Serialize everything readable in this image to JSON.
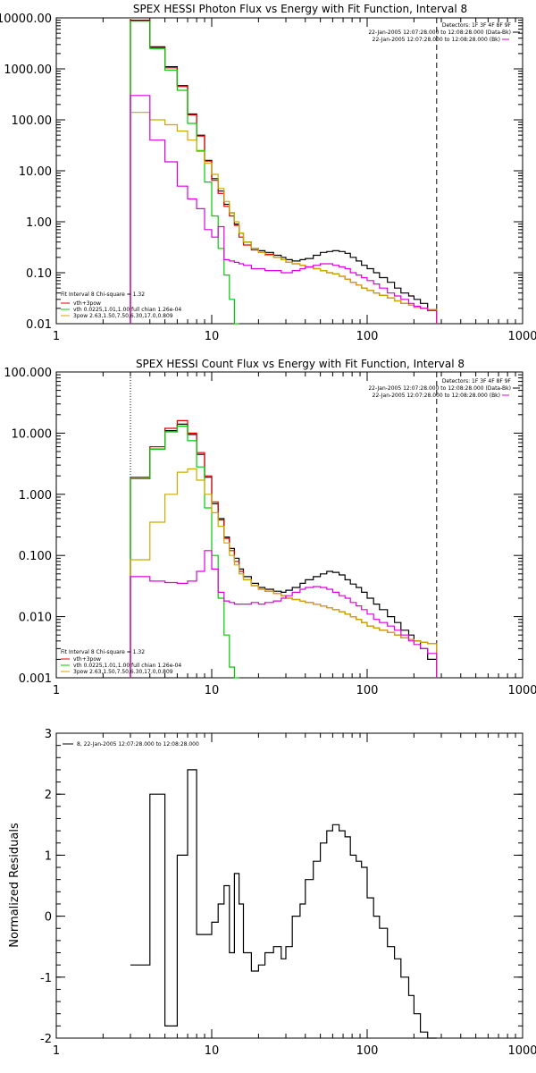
{
  "colors": {
    "total": "#000000",
    "fit_total": "#e00000",
    "vth": "#00cc00",
    "bpow": "#ccaa00",
    "bkg": "#dd00dd",
    "residual": "#000000"
  },
  "chart_data": [
    {
      "type": "line",
      "title": "SPEX HESSI Photon Flux vs Energy with Fit Function, Interval 8",
      "xscale": "log",
      "yscale": "log",
      "xlim": [
        1,
        1000
      ],
      "ylim": [
        0.01,
        10000
      ],
      "xticks": [
        1,
        10,
        100,
        1000
      ],
      "xtick_labels": [
        "1",
        "10",
        "100",
        "1000"
      ],
      "yticks": [
        0.01,
        0.1,
        1,
        10,
        100,
        1000,
        10000
      ],
      "ytick_labels": [
        "0.01",
        "0.10",
        "1.00",
        "10.00",
        "100.00",
        "1000.00",
        "10000.00"
      ],
      "vlines": [
        {
          "x": 3,
          "style": "dotted",
          "color": "#ffa500"
        },
        {
          "x": 280,
          "style": "dashed",
          "color": "#000000"
        }
      ],
      "legend_right": [
        "Detectors: 1F 3F 4F 8F 9F",
        "22-Jan-2005 12:07:28.000 to 12:08:28.000 (Data-Bk)",
        "22-Jan-2005 12:07:28.000 to 12:08:28.000 (Bk)"
      ],
      "legend_left": [
        "Fit Interval 8    Chi-square = 1.32",
        "vth+3pow",
        "vth 0.0225,1.01,1.00  full chian 1.26e-04",
        "3pow 2.63,1.50,7.50,6.30,17.0,0.809"
      ],
      "series": [
        {
          "name": "Data-Bk",
          "color": "#000000",
          "edges": [
            3,
            4,
            5,
            6,
            7,
            8,
            9,
            10,
            11,
            12,
            13,
            14,
            15,
            16,
            18,
            20,
            22,
            25,
            28,
            30,
            33,
            37,
            40,
            45,
            50,
            55,
            60,
            66,
            72,
            78,
            85,
            92,
            100,
            110,
            120,
            135,
            150,
            165,
            185,
            200,
            220,
            245,
            280
          ],
          "values": [
            9000,
            2700,
            1100,
            470,
            130,
            50,
            16,
            7,
            4.0,
            2.2,
            1.5,
            0.9,
            0.6,
            0.4,
            0.3,
            0.27,
            0.25,
            0.22,
            0.2,
            0.18,
            0.17,
            0.18,
            0.19,
            0.22,
            0.25,
            0.26,
            0.27,
            0.26,
            0.24,
            0.2,
            0.17,
            0.14,
            0.12,
            0.1,
            0.08,
            0.065,
            0.05,
            0.04,
            0.035,
            0.03,
            0.025,
            0.018
          ]
        },
        {
          "name": "vth+3pow",
          "color": "#e00000",
          "edges": [
            3,
            4,
            5,
            6,
            7,
            8,
            9,
            10,
            11,
            12,
            13,
            14,
            15,
            16,
            18,
            20,
            22,
            25,
            28,
            30,
            33,
            37,
            40,
            45,
            50,
            55,
            60,
            66,
            72,
            78,
            85,
            92,
            100,
            110,
            120,
            135,
            150,
            165,
            185,
            200,
            220,
            245,
            280
          ],
          "values": [
            8800,
            2600,
            1050,
            450,
            125,
            48,
            15.5,
            6.5,
            3.6,
            2.0,
            1.3,
            0.85,
            0.5,
            0.35,
            0.28,
            0.25,
            0.23,
            0.2,
            0.18,
            0.16,
            0.15,
            0.14,
            0.13,
            0.12,
            0.11,
            0.1,
            0.095,
            0.085,
            0.075,
            0.065,
            0.057,
            0.05,
            0.045,
            0.04,
            0.036,
            0.032,
            0.028,
            0.025,
            0.023,
            0.021,
            0.02,
            0.019
          ]
        },
        {
          "name": "vth",
          "color": "#00cc00",
          "edges": [
            3,
            4,
            5,
            6,
            7,
            8,
            9,
            10,
            11,
            12,
            13,
            14,
            15
          ],
          "values": [
            8600,
            2500,
            950,
            380,
            85,
            25,
            6.0,
            1.3,
            0.3,
            0.09,
            0.03,
            0.008
          ]
        },
        {
          "name": "3pow",
          "color": "#ccaa00",
          "edges": [
            3,
            4,
            5,
            6,
            7,
            8,
            9,
            10,
            11,
            12,
            13,
            14,
            15,
            16,
            18,
            20,
            22,
            25,
            28,
            30,
            33,
            37,
            40,
            45,
            50,
            55,
            60,
            66,
            72,
            78,
            85,
            92,
            100,
            110,
            120,
            135,
            150,
            165,
            185,
            200,
            220,
            245,
            280
          ],
          "values": [
            140,
            100,
            80,
            60,
            40,
            24,
            14,
            8.5,
            4.5,
            2.5,
            1.5,
            1.0,
            0.6,
            0.4,
            0.3,
            0.25,
            0.22,
            0.2,
            0.18,
            0.16,
            0.15,
            0.14,
            0.13,
            0.12,
            0.11,
            0.1,
            0.095,
            0.085,
            0.075,
            0.065,
            0.057,
            0.05,
            0.045,
            0.04,
            0.036,
            0.032,
            0.028,
            0.025,
            0.023,
            0.021,
            0.02,
            0.019
          ]
        },
        {
          "name": "Bk",
          "color": "#dd00dd",
          "edges": [
            3,
            4,
            5,
            6,
            7,
            8,
            9,
            10,
            11,
            12,
            13,
            14,
            15,
            16,
            18,
            20,
            22,
            25,
            28,
            30,
            33,
            37,
            40,
            45,
            50,
            55,
            60,
            66,
            72,
            78,
            85,
            92,
            100,
            110,
            120,
            135,
            150,
            165,
            185,
            200,
            220,
            245,
            280
          ],
          "values": [
            300,
            40,
            15,
            5,
            2.8,
            1.8,
            0.7,
            0.5,
            0.8,
            0.18,
            0.17,
            0.16,
            0.15,
            0.14,
            0.12,
            0.12,
            0.11,
            0.11,
            0.1,
            0.1,
            0.11,
            0.12,
            0.13,
            0.14,
            0.15,
            0.15,
            0.14,
            0.13,
            0.12,
            0.1,
            0.09,
            0.08,
            0.07,
            0.06,
            0.05,
            0.04,
            0.035,
            0.03,
            0.025,
            0.022,
            0.02,
            0.018
          ]
        }
      ]
    },
    {
      "type": "line",
      "title": "SPEX HESSI Count Flux vs Energy with Fit Function, Interval 8",
      "xscale": "log",
      "yscale": "log",
      "xlim": [
        1,
        1000
      ],
      "ylim": [
        0.001,
        100
      ],
      "xticks": [
        1,
        10,
        100,
        1000
      ],
      "xtick_labels": [
        "1",
        "10",
        "100",
        "1000"
      ],
      "yticks": [
        0.001,
        0.01,
        0.1,
        1,
        10,
        100
      ],
      "ytick_labels": [
        "0.001",
        "0.010",
        "0.100",
        "1.000",
        "10.000",
        "100.000"
      ],
      "vlines": [
        {
          "x": 3,
          "style": "dotted",
          "color": "#000000"
        },
        {
          "x": 280,
          "style": "dashed",
          "color": "#000000"
        }
      ],
      "legend_right": [
        "Detectors: 1F 3F 4F 8F 9F",
        "22-Jan-2005 12:07:28.000 to 12:08:28.000 (Data-Bk)",
        "22-Jan-2005 12:07:28.000 to 12:08:28.000 (Bk)"
      ],
      "legend_left": [
        "Fit Interval 8    Chi-square = 1.32",
        "vth+3pow",
        "vth 0.0225,1.01,1.00  full chian 1.26e-04",
        "3pow 2.63,1.50,7.50,6.30,17.0,0.809"
      ],
      "series": [
        {
          "name": "Data-Bk",
          "color": "#000000",
          "edges": [
            3,
            4,
            5,
            6,
            7,
            8,
            9,
            10,
            11,
            12,
            13,
            14,
            15,
            16,
            18,
            20,
            22,
            25,
            28,
            30,
            33,
            37,
            40,
            45,
            50,
            55,
            60,
            66,
            72,
            78,
            85,
            92,
            100,
            110,
            120,
            135,
            150,
            165,
            185,
            200,
            220,
            245,
            280
          ],
          "values": [
            1.8,
            5.5,
            11,
            14,
            9.5,
            4.5,
            1.9,
            0.7,
            0.4,
            0.2,
            0.13,
            0.09,
            0.06,
            0.045,
            0.035,
            0.03,
            0.028,
            0.026,
            0.025,
            0.027,
            0.03,
            0.035,
            0.04,
            0.045,
            0.05,
            0.055,
            0.053,
            0.048,
            0.04,
            0.034,
            0.03,
            0.025,
            0.02,
            0.016,
            0.013,
            0.01,
            0.008,
            0.006,
            0.005,
            0.004,
            0.003,
            0.002
          ]
        },
        {
          "name": "vth+3pow",
          "color": "#e00000",
          "edges": [
            3,
            4,
            5,
            6,
            7,
            8,
            9,
            10,
            11,
            12,
            13,
            14,
            15,
            16,
            18,
            20,
            22,
            25,
            28,
            30,
            33,
            37,
            40,
            45,
            50,
            55,
            60,
            66,
            72,
            78,
            85,
            92,
            100,
            110,
            120,
            135,
            150,
            165,
            185,
            200,
            220,
            245,
            280
          ],
          "values": [
            1.9,
            6,
            12,
            16,
            10,
            4.8,
            2.0,
            0.75,
            0.38,
            0.19,
            0.12,
            0.08,
            0.055,
            0.04,
            0.032,
            0.028,
            0.026,
            0.024,
            0.022,
            0.02,
            0.019,
            0.018,
            0.017,
            0.016,
            0.015,
            0.014,
            0.013,
            0.012,
            0.011,
            0.01,
            0.009,
            0.008,
            0.007,
            0.0065,
            0.006,
            0.0055,
            0.005,
            0.0045,
            0.0042,
            0.004,
            0.0038,
            0.0036
          ]
        },
        {
          "name": "vth",
          "color": "#00cc00",
          "edges": [
            3,
            4,
            5,
            6,
            7,
            8,
            9,
            10,
            11,
            12,
            13,
            14,
            15
          ],
          "values": [
            1.8,
            5.5,
            10.5,
            13,
            7.5,
            2.8,
            0.6,
            0.1,
            0.02,
            0.005,
            0.0015,
            0.0005
          ]
        },
        {
          "name": "3pow",
          "color": "#ccaa00",
          "edges": [
            3,
            4,
            5,
            6,
            7,
            8,
            9,
            10,
            11,
            12,
            13,
            14,
            15,
            16,
            18,
            20,
            22,
            25,
            28,
            30,
            33,
            37,
            40,
            45,
            50,
            55,
            60,
            66,
            72,
            78,
            85,
            92,
            100,
            110,
            120,
            135,
            150,
            165,
            185,
            200,
            220,
            245,
            280
          ],
          "values": [
            0.085,
            0.35,
            1.0,
            2.3,
            2.6,
            1.7,
            1.0,
            0.5,
            0.3,
            0.16,
            0.1,
            0.07,
            0.05,
            0.04,
            0.032,
            0.028,
            0.026,
            0.024,
            0.022,
            0.02,
            0.019,
            0.018,
            0.017,
            0.016,
            0.015,
            0.014,
            0.013,
            0.012,
            0.011,
            0.01,
            0.009,
            0.008,
            0.007,
            0.0065,
            0.006,
            0.0055,
            0.005,
            0.0045,
            0.0042,
            0.004,
            0.0038,
            0.0036
          ]
        },
        {
          "name": "Bk",
          "color": "#dd00dd",
          "edges": [
            3,
            4,
            5,
            6,
            7,
            8,
            9,
            10,
            11,
            12,
            13,
            14,
            15,
            16,
            18,
            20,
            22,
            25,
            28,
            30,
            33,
            37,
            40,
            45,
            50,
            55,
            60,
            66,
            72,
            78,
            85,
            92,
            100,
            110,
            120,
            135,
            150,
            165,
            185,
            200,
            220,
            245,
            280
          ],
          "values": [
            0.045,
            0.038,
            0.036,
            0.035,
            0.038,
            0.055,
            0.12,
            0.06,
            0.025,
            0.018,
            0.017,
            0.016,
            0.016,
            0.016,
            0.017,
            0.016,
            0.017,
            0.018,
            0.02,
            0.022,
            0.025,
            0.028,
            0.03,
            0.031,
            0.03,
            0.028,
            0.025,
            0.022,
            0.02,
            0.017,
            0.015,
            0.013,
            0.011,
            0.009,
            0.008,
            0.007,
            0.006,
            0.005,
            0.004,
            0.0035,
            0.003,
            0.0025
          ]
        }
      ]
    },
    {
      "type": "line",
      "title": "",
      "xscale": "log",
      "yscale": "linear",
      "xlim": [
        1,
        1000
      ],
      "ylim": [
        -2,
        3
      ],
      "xticks": [
        1,
        10,
        100,
        1000
      ],
      "xtick_labels": [
        "1",
        "10",
        "100",
        "1000"
      ],
      "yticks": [
        -2,
        -1,
        0,
        1,
        2,
        3
      ],
      "ytick_labels": [
        "-2",
        "-1",
        "0",
        "1",
        "2",
        "3"
      ],
      "ylabel": "Normalized Residuals",
      "legend_left": [
        "8, 22-Jan-2005 12:07:28.000 to 12:08:28.000"
      ],
      "series": [
        {
          "name": "8, 22-Jan-2005 12:07:28.000 to 12:08:28.000",
          "color": "#000000",
          "edges": [
            3,
            4,
            5,
            6,
            7,
            8,
            9,
            10,
            11,
            12,
            13,
            14,
            15,
            16,
            18,
            20,
            22,
            25,
            28,
            30,
            33,
            37,
            40,
            45,
            50,
            55,
            60,
            66,
            72,
            78,
            85,
            92,
            100,
            110,
            120,
            135,
            150,
            165,
            185,
            200,
            220,
            245,
            280
          ],
          "values": [
            -0.8,
            2.0,
            -1.8,
            1.0,
            2.4,
            -0.3,
            -0.3,
            -0.1,
            0.2,
            0.5,
            -0.6,
            0.7,
            0.2,
            -0.6,
            -0.9,
            -0.8,
            -0.6,
            -0.5,
            -0.7,
            -0.5,
            0.0,
            0.2,
            0.6,
            0.9,
            1.2,
            1.4,
            1.5,
            1.4,
            1.3,
            1.0,
            0.9,
            0.8,
            0.3,
            0.0,
            -0.2,
            -0.5,
            -0.7,
            -1.0,
            -1.3,
            -1.6,
            -1.9,
            -2.0
          ]
        }
      ]
    }
  ]
}
